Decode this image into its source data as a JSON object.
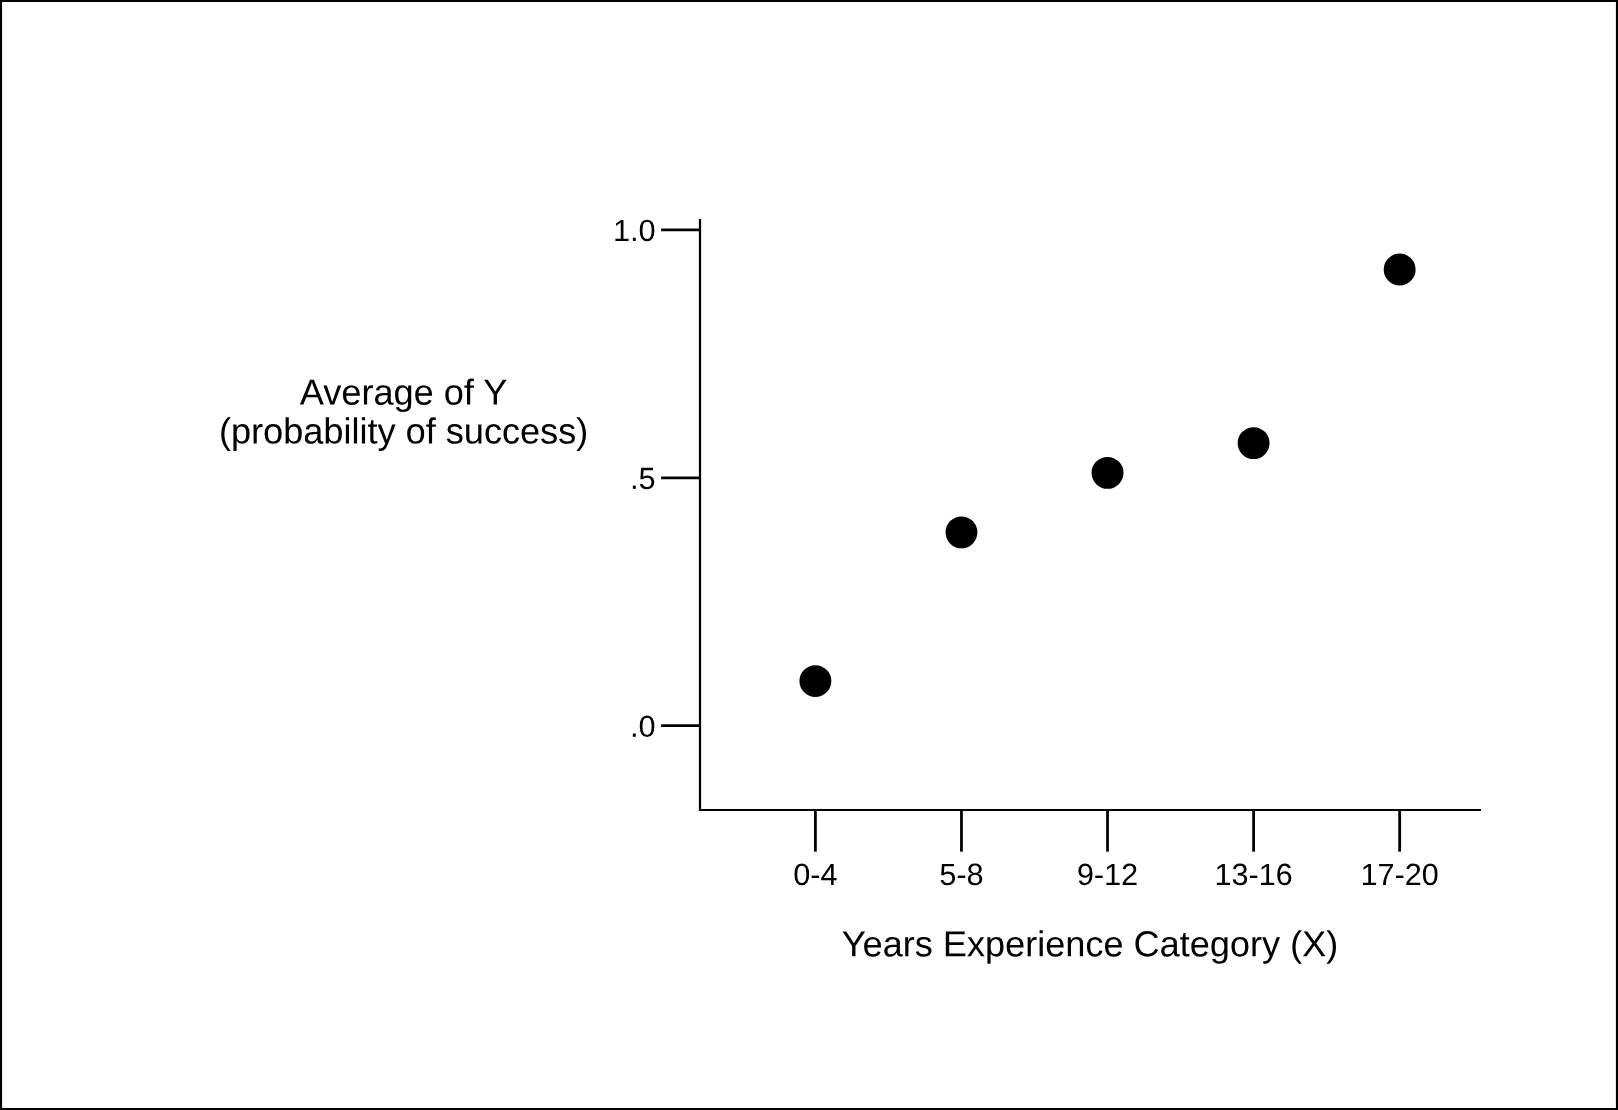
{
  "chart_data": {
    "type": "scatter",
    "categories": [
      "0-4",
      "5-8",
      "9-12",
      "13-16",
      "17-20"
    ],
    "values": [
      0.09,
      0.39,
      0.51,
      0.57,
      0.92
    ],
    "color": "#000000",
    "marker": "circle",
    "xlabel": "Years Experience Category (X)",
    "ylabel": "Average of Y\n(probability of success)",
    "ylim": [
      -0.17,
      1.02
    ],
    "yticks": [
      {
        "value": 0,
        "label": ".0"
      },
      {
        "value": 0.5,
        "label": ".5"
      },
      {
        "value": 1.0,
        "label": "1.0"
      }
    ],
    "grid": false,
    "legend": false
  }
}
